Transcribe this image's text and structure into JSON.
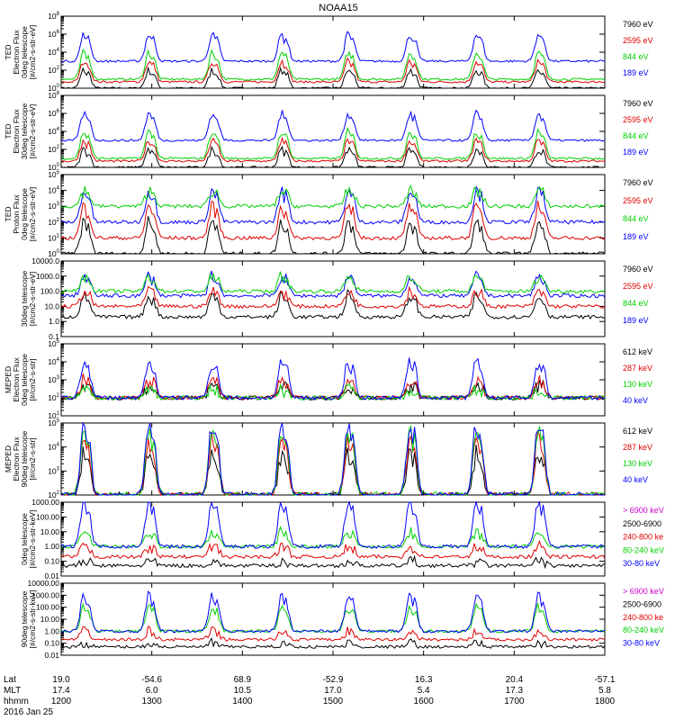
{
  "title": "NOAA15",
  "date_label": "2016 Jan 25",
  "colors": {
    "black": "#000000",
    "red": "#e00000",
    "green": "#00d000",
    "blue": "#0000ff",
    "magenta": "#cc00cc"
  },
  "panels": [
    {
      "ylabel_lines": [
        "TED",
        "Electron Flux",
        "0deg telescope",
        "[#/cm2-s-str-eV]"
      ],
      "ticks": [
        "10^0",
        "10^2",
        "10^4",
        "10^6",
        "10^8"
      ],
      "legend": [
        {
          "label": "7960 eV",
          "color": "black"
        },
        {
          "label": "2595 eV",
          "color": "red"
        },
        {
          "label": "844 eV",
          "color": "green"
        },
        {
          "label": "189 eV",
          "color": "blue"
        }
      ]
    },
    {
      "ylabel_lines": [
        "TED",
        "Electron Flux",
        "30deg telescope",
        "[#/cm2-s-str-eV]"
      ],
      "ticks": [
        "10^0",
        "10^2",
        "10^4",
        "10^6",
        "10^8"
      ],
      "legend": [
        {
          "label": "7960 eV",
          "color": "black"
        },
        {
          "label": "2595 eV",
          "color": "red"
        },
        {
          "label": "844 eV",
          "color": "green"
        },
        {
          "label": "189 eV",
          "color": "blue"
        }
      ]
    },
    {
      "ylabel_lines": [
        "TED",
        "Proton Flux",
        "0deg telescope",
        "[#/cm2-s-str-eV]"
      ],
      "ticks": [
        "10^0",
        "10^1",
        "10^2",
        "10^3",
        "10^4",
        "10^5"
      ],
      "legend": [
        {
          "label": "7960 eV",
          "color": "black"
        },
        {
          "label": "2595 eV",
          "color": "red"
        },
        {
          "label": "844 eV",
          "color": "green"
        },
        {
          "label": "189 eV",
          "color": "blue"
        }
      ]
    },
    {
      "ylabel_lines": [
        "30deg telescope",
        "[#/cm2-s-str-eV]"
      ],
      "ticks": [
        "0.1",
        "1.0",
        "10.0",
        "100.0",
        "1000.0",
        "10000.0"
      ],
      "legend": [
        {
          "label": "7960 eV",
          "color": "black"
        },
        {
          "label": "2595 eV",
          "color": "red"
        },
        {
          "label": "844 eV",
          "color": "green"
        },
        {
          "label": "189 eV",
          "color": "blue"
        }
      ]
    },
    {
      "ylabel_lines": [
        "MEPED",
        "Electron Flux",
        "0deg telescope",
        "[#/cm2-s-str]"
      ],
      "ticks": [
        "10^1",
        "10^2",
        "10^3",
        "10^4",
        "10^5"
      ],
      "legend": [
        {
          "label": "612 keV",
          "color": "black"
        },
        {
          "label": "287 keV",
          "color": "red"
        },
        {
          "label": "130 keV",
          "color": "green"
        },
        {
          "label": "40 keV",
          "color": "blue"
        }
      ]
    },
    {
      "ylabel_lines": [
        "MEPED",
        "Electron Flux",
        "90deg telescope",
        "[#/cm2-s-str]"
      ],
      "ticks": [
        "10^2",
        "10^3",
        "10^4",
        "10^5"
      ],
      "legend": [
        {
          "label": "612 keV",
          "color": "black"
        },
        {
          "label": "287 keV",
          "color": "red"
        },
        {
          "label": "130 keV",
          "color": "green"
        },
        {
          "label": "40 keV",
          "color": "blue"
        }
      ]
    },
    {
      "ylabel_lines": [
        "0deg telescope",
        "[#/cm2-s-str-keV]"
      ],
      "ticks": [
        "0.01",
        "0.10",
        "1.00",
        "10.00",
        "100.00",
        "1000.00"
      ],
      "legend": [
        {
          "label": "> 6900 keV",
          "color": "magenta"
        },
        {
          "label": "2500-6900",
          "color": "black"
        },
        {
          "label": "240-800 ke",
          "color": "red"
        },
        {
          "label": "80-240 keV",
          "color": "green"
        },
        {
          "label": "30-80 keV",
          "color": "blue"
        }
      ]
    },
    {
      "ylabel_lines": [
        "90deg telescope",
        "[#/cm2-s-str-keV]"
      ],
      "ticks": [
        "0.01",
        "0.10",
        "1.00",
        "10.00",
        "100.00",
        "1000.00",
        "10000.00"
      ],
      "legend": [
        {
          "label": "> 6900 keV",
          "color": "magenta"
        },
        {
          "label": "2500-6900",
          "color": "black"
        },
        {
          "label": "240-800 ke",
          "color": "red"
        },
        {
          "label": "80-240 keV",
          "color": "green"
        },
        {
          "label": "30-80 keV",
          "color": "blue"
        }
      ]
    }
  ],
  "xaxis": {
    "row_labels": [
      "Lat",
      "MLT",
      "hhmm"
    ],
    "lat": [
      "19.0",
      "-54.6",
      "68.9",
      "-52.9",
      "16.3",
      "20.4",
      "-57.1"
    ],
    "mlt": [
      "17.4",
      "6.0",
      "10.5",
      "17.0",
      "5.4",
      "17.3",
      "5.8"
    ],
    "hhmm": [
      "1200",
      "1300",
      "1400",
      "1500",
      "1600",
      "1700",
      "1800"
    ]
  },
  "chart_data": {
    "type": "line",
    "title": "NOAA15",
    "x_hhmm_ticks": [
      "1200",
      "1300",
      "1400",
      "1500",
      "1600",
      "1700",
      "1800"
    ],
    "x_range_utc": [
      "12:00",
      "18:00"
    ],
    "y_scale": "log",
    "grid": false,
    "legend_position": "right of each panel",
    "orbit_pass_peaks_utc": [
      "12:15",
      "12:58",
      "13:40",
      "14:26",
      "15:10",
      "15:51",
      "16:35",
      "17:16"
    ],
    "panel_series_peak_values": [
      {
        "series": [
          {
            "name": "189 eV",
            "peak": 1000000.0,
            "background": 1000.0
          },
          {
            "name": "844 eV",
            "peak": 10000.0,
            "background": 10
          },
          {
            "name": "2595 eV",
            "peak": 1000.0,
            "background": 5
          },
          {
            "name": "7960 eV",
            "peak": 100,
            "background": 1
          }
        ]
      },
      {
        "series": [
          {
            "name": "189 eV",
            "peak": 1000000.0,
            "background": 1000.0
          },
          {
            "name": "844 eV",
            "peak": 10000.0,
            "background": 10
          },
          {
            "name": "2595 eV",
            "peak": 1000.0,
            "background": 5
          },
          {
            "name": "7960 eV",
            "peak": 100,
            "background": 1
          }
        ]
      },
      {
        "series": [
          {
            "name": "844 eV",
            "peak": 10000.0,
            "background": 1000.0
          },
          {
            "name": "189 eV",
            "peak": 10000.0,
            "background": 100
          },
          {
            "name": "2595 eV",
            "peak": 1000.0,
            "background": 10
          },
          {
            "name": "7960 eV",
            "peak": 100,
            "background": 1
          }
        ]
      },
      {
        "series": [
          {
            "name": "844 eV",
            "peak": 1000,
            "background": 100
          },
          {
            "name": "189 eV",
            "peak": 1000,
            "background": 50
          },
          {
            "name": "2595 eV",
            "peak": 100,
            "background": 10
          },
          {
            "name": "7960 eV",
            "peak": 50,
            "background": 2
          }
        ]
      },
      {
        "series": [
          {
            "name": "40 keV",
            "peak": 10000.0,
            "background": 100
          },
          {
            "name": "130 keV",
            "peak": 300,
            "background": 100
          },
          {
            "name": "287 keV",
            "peak": 1000.0,
            "background": 100
          },
          {
            "name": "612 keV",
            "peak": 500,
            "background": 100
          }
        ]
      },
      {
        "series": [
          {
            "name": "40 keV",
            "peak": 100000.0,
            "background": 100
          },
          {
            "name": "130 keV",
            "peak": 50000.0,
            "background": 100
          },
          {
            "name": "287 keV",
            "peak": 20000.0,
            "background": 100
          },
          {
            "name": "612 keV",
            "peak": 5000.0,
            "background": 100
          }
        ]
      },
      {
        "series": [
          {
            "name": "30-80 keV",
            "peak": 1000,
            "background": 1
          },
          {
            "name": "80-240 keV",
            "peak": 10,
            "background": 1
          },
          {
            "name": "240-800 ke",
            "peak": 1,
            "background": 0.2
          },
          {
            "name": "2500-6900",
            "peak": 0.1,
            "background": 0.05
          }
        ]
      },
      {
        "series": [
          {
            "name": "30-80 keV",
            "peak": 1000,
            "background": 1
          },
          {
            "name": "80-240 keV",
            "peak": 100,
            "background": 1
          },
          {
            "name": "240-800 ke",
            "peak": 1,
            "background": 0.2
          },
          {
            "name": "2500-6900",
            "peak": 0.1,
            "background": 0.05
          }
        ]
      }
    ]
  }
}
